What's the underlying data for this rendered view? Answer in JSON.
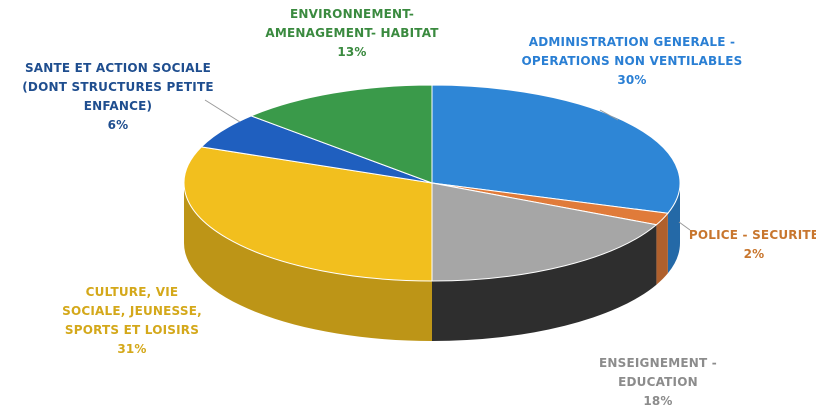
{
  "chart_data": {
    "type": "pie",
    "style": "3d",
    "title": "",
    "slices": [
      {
        "label": [
          "ADMINISTRATION GENERALE -",
          "OPERATIONS NON VENTILABLES"
        ],
        "pct_text": "30%",
        "value": 30,
        "color": "#2e86d6"
      },
      {
        "label": [
          "POLICE - SECURITE"
        ],
        "pct_text": "2%",
        "value": 2,
        "color": "#e07b3a"
      },
      {
        "label": [
          "ENSEIGNEMENT -",
          "EDUCATION"
        ],
        "pct_text": "18%",
        "value": 18,
        "color": "#a6a6a6"
      },
      {
        "label": [
          "CULTURE, VIE",
          "SOCIALE, JEUNESSE,",
          "SPORTS ET LOISIRS"
        ],
        "pct_text": "31%",
        "value": 31,
        "color": "#f2bf1e"
      },
      {
        "label": [
          "SANTE ET ACTION SOCIALE",
          "(DONT STRUCTURES PETITE",
          "ENFANCE)"
        ],
        "pct_text": "6%",
        "value": 6,
        "color": "#1f5fbf"
      },
      {
        "label": [
          "ENVIRONNEMENT-",
          "AMENAGEMENT- HABITAT"
        ],
        "pct_text": "13%",
        "value": 13,
        "color": "#3a9a4a"
      }
    ],
    "label_colors": [
      "#2a7fd4",
      "#c8762e",
      "#8c8c8c",
      "#d4a81a",
      "#1f4e8f",
      "#3a8a3f"
    ]
  }
}
